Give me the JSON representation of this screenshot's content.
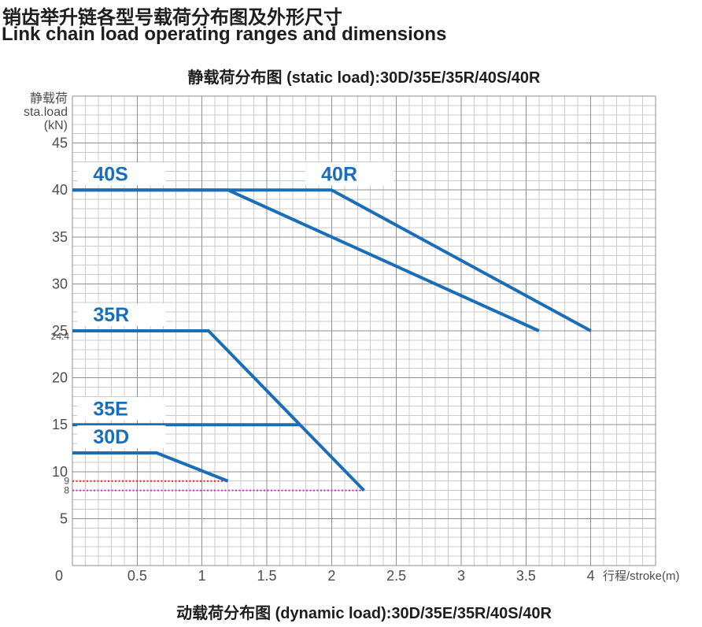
{
  "header": {
    "title_zh": "销齿举升链各型号载荷分布图及外形尺寸",
    "title_en": "Link chain load operating ranges and dimensions"
  },
  "footer": {
    "dynamic_chart_title": "动载荷分布图  (dynamic load):30D/35E/35R/40S/40R"
  },
  "colors": {
    "series_blue": "#1a6db7",
    "ref_red": "#e02420",
    "ref_magenta": "#c535c5",
    "grid_minor": "#cbcbcb",
    "grid_major": "#8f8f8f",
    "axis_text": "#4d4d4d",
    "title_text": "#1d1d1d"
  },
  "chart_data": {
    "type": "line",
    "title": "静载荷分布图  (static load):30D/35E/35R/40S/40R",
    "ylabel_lines": [
      "静载荷",
      "sta.load",
      "(kN)"
    ],
    "xlabel": "行程/stroke(m)",
    "xlim": [
      0,
      4.5
    ],
    "ylim": [
      0,
      50
    ],
    "grid": true,
    "legend_position": "inline-labels",
    "x_minor_step": 0.1,
    "y_minor_step": 1,
    "x_tick_values": [
      0,
      0.5,
      1,
      1.5,
      2,
      2.5,
      3,
      3.5,
      4
    ],
    "x_tick_labels": [
      "0",
      "0.5",
      "1",
      "1.5",
      "2",
      "2.5",
      "3",
      "3.5",
      "4"
    ],
    "y_tick_values": [
      5,
      10,
      15,
      20,
      25,
      30,
      35,
      40,
      45
    ],
    "extra_y_labels": [
      {
        "label": "24.4",
        "value": 24.4
      },
      {
        "label": "9",
        "value": 9
      },
      {
        "label": "8",
        "value": 8
      }
    ],
    "series": [
      {
        "name": "40S",
        "points": [
          [
            0,
            40
          ],
          [
            1.2,
            40
          ],
          [
            3.6,
            25
          ]
        ],
        "label_at": [
          0.16,
          41.0
        ]
      },
      {
        "name": "40R",
        "points": [
          [
            0,
            40
          ],
          [
            2.0,
            40
          ],
          [
            4.0,
            25
          ]
        ],
        "label_at": [
          1.92,
          41.0
        ]
      },
      {
        "name": "35R",
        "points": [
          [
            0,
            25
          ],
          [
            1.05,
            25
          ],
          [
            2.25,
            8
          ]
        ],
        "label_at": [
          0.16,
          26.0
        ]
      },
      {
        "name": "35E",
        "points": [
          [
            0,
            15
          ],
          [
            1.75,
            15
          ]
        ],
        "label_at": [
          0.16,
          16.0
        ]
      },
      {
        "name": "30D",
        "points": [
          [
            0,
            12
          ],
          [
            0.65,
            12
          ],
          [
            1.2,
            9
          ]
        ],
        "label_at": [
          0.16,
          13.0
        ]
      }
    ],
    "reference_lines": [
      {
        "label": "9",
        "value": 9,
        "x_start": 0,
        "x_end": 1.2,
        "color_key": "ref_red"
      },
      {
        "label": "8",
        "value": 8,
        "x_start": 0,
        "x_end": 2.25,
        "color_key": "ref_magenta"
      }
    ]
  }
}
